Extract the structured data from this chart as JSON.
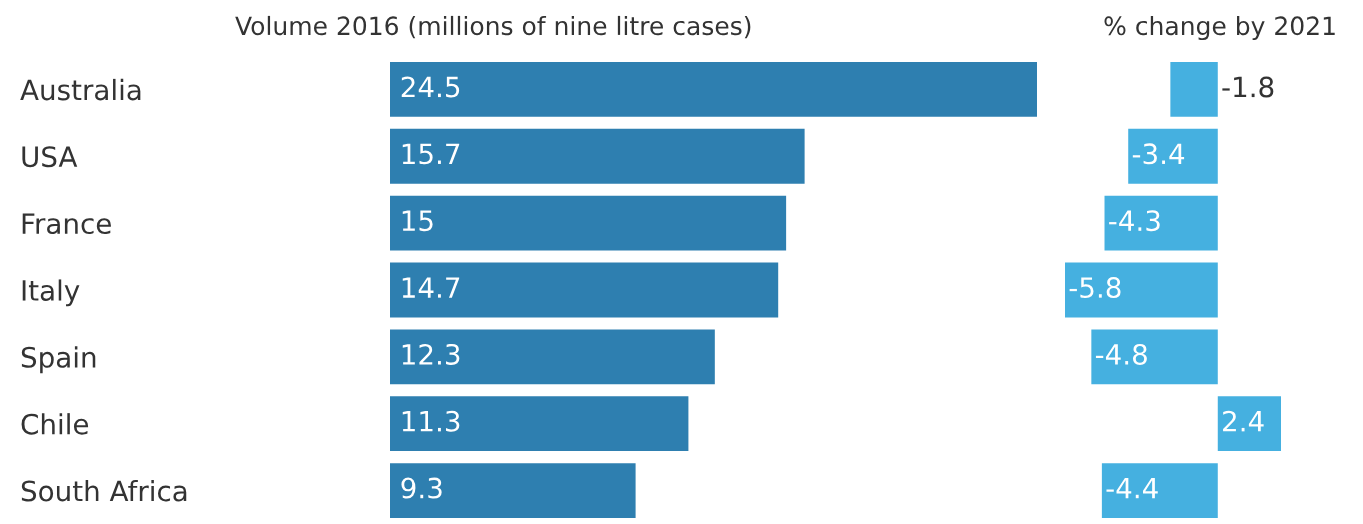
{
  "chart_data": [
    {
      "type": "bar",
      "orientation": "horizontal",
      "title": "Volume 2016 (millions of nine litre cases)",
      "categories": [
        "Australia",
        "USA",
        "France",
        "Italy",
        "Spain",
        "Chile",
        "South Africa"
      ],
      "values": [
        24.5,
        15.7,
        15,
        14.7,
        12.3,
        11.3,
        9.3
      ],
      "color": "#2e7fb0",
      "data_labels": true,
      "grid": false,
      "legend": false
    },
    {
      "type": "bar",
      "orientation": "horizontal",
      "title": "% change by 2021",
      "categories": [
        null,
        null,
        null,
        null,
        null,
        null,
        null
      ],
      "values": [
        -1.8,
        -3.4,
        -4.3,
        -5.8,
        -4.8,
        2.4,
        -4.4
      ],
      "color": "#45b0e0",
      "data_labels": true,
      "grid": false,
      "legend": false
    }
  ]
}
